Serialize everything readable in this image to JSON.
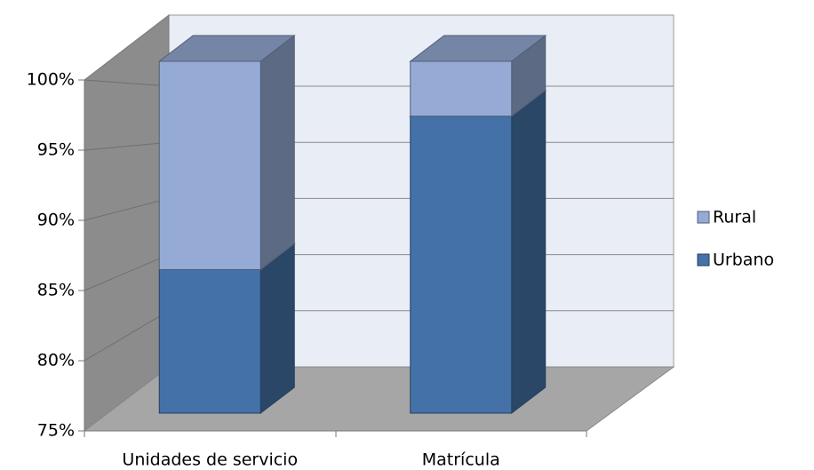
{
  "chart_data": {
    "type": "bar3d_stacked",
    "categories": [
      "Unidades de servicio",
      "Matrícula"
    ],
    "series": [
      {
        "name": "Urbano",
        "color": "#4472a8",
        "values": [
          85.2,
          96.1
        ]
      },
      {
        "name": "Rural",
        "color": "#95abd5",
        "values": [
          14.8,
          3.9
        ]
      }
    ],
    "ylim": [
      75,
      100
    ],
    "yticks": [
      {
        "value": 75,
        "label": "75%"
      },
      {
        "value": 80,
        "label": "80%"
      },
      {
        "value": 85,
        "label": "85%"
      },
      {
        "value": 90,
        "label": "90%"
      },
      {
        "value": 95,
        "label": "95%"
      },
      {
        "value": 100,
        "label": "100%"
      }
    ],
    "grid": true,
    "legend": "right"
  }
}
